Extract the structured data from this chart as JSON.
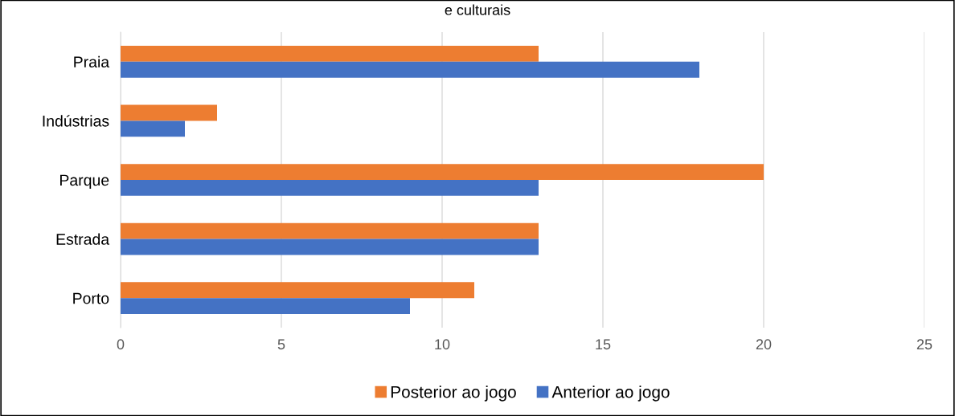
{
  "chart_data": {
    "type": "bar",
    "orientation": "horizontal",
    "title": "e culturais",
    "categories": [
      "Praia",
      "Indústrias",
      "Parque",
      "Estrada",
      "Porto"
    ],
    "series": [
      {
        "name": "Posterior ao jogo",
        "color": "#ed7d31",
        "values": [
          13,
          3,
          20,
          13,
          11
        ]
      },
      {
        "name": "Anterior ao jogo",
        "color": "#4472c4",
        "values": [
          18,
          2,
          13,
          13,
          9
        ]
      }
    ],
    "xlim": [
      0,
      25
    ],
    "xticks": [
      0,
      5,
      10,
      15,
      20,
      25
    ],
    "grid": "x",
    "legend": "bottom"
  }
}
